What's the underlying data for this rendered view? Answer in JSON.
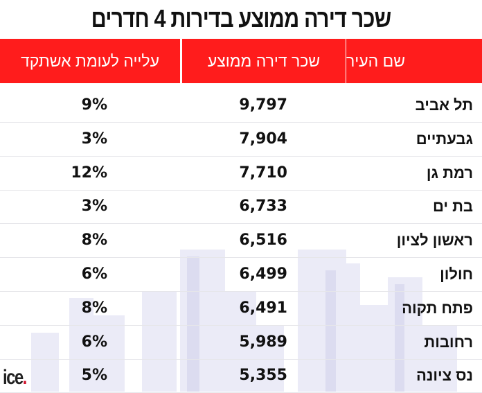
{
  "title": "שכר דירה ממוצע בדירות 4 חדרים",
  "headers": {
    "city": "שם העיר",
    "rent": "שכר דירה ממוצע",
    "increase": "עלייה לעומת אשתקד"
  },
  "rows": [
    {
      "city": "תל אביב",
      "rent": "9,797",
      "increase": "9%"
    },
    {
      "city": "גבעתיים",
      "rent": "7,904",
      "increase": "3%"
    },
    {
      "city": "רמת גן",
      "rent": "7,710",
      "increase": "12%"
    },
    {
      "city": "בת ים",
      "rent": "6,733",
      "increase": "3%"
    },
    {
      "city": "ראשון לציון",
      "rent": "6,516",
      "increase": "8%"
    },
    {
      "city": "חולון",
      "rent": "6,499",
      "increase": "6%"
    },
    {
      "city": "פתח תקוה",
      "rent": "6,491",
      "increase": "8%"
    },
    {
      "city": "רחובות",
      "rent": "5,989",
      "increase": "6%"
    },
    {
      "city": "נס ציונה",
      "rent": "5,355",
      "increase": "5%"
    }
  ],
  "logo": {
    "text": "ice",
    "dot": "."
  },
  "colors": {
    "header": "#ff1c1c",
    "accent": "#d0102a"
  }
}
